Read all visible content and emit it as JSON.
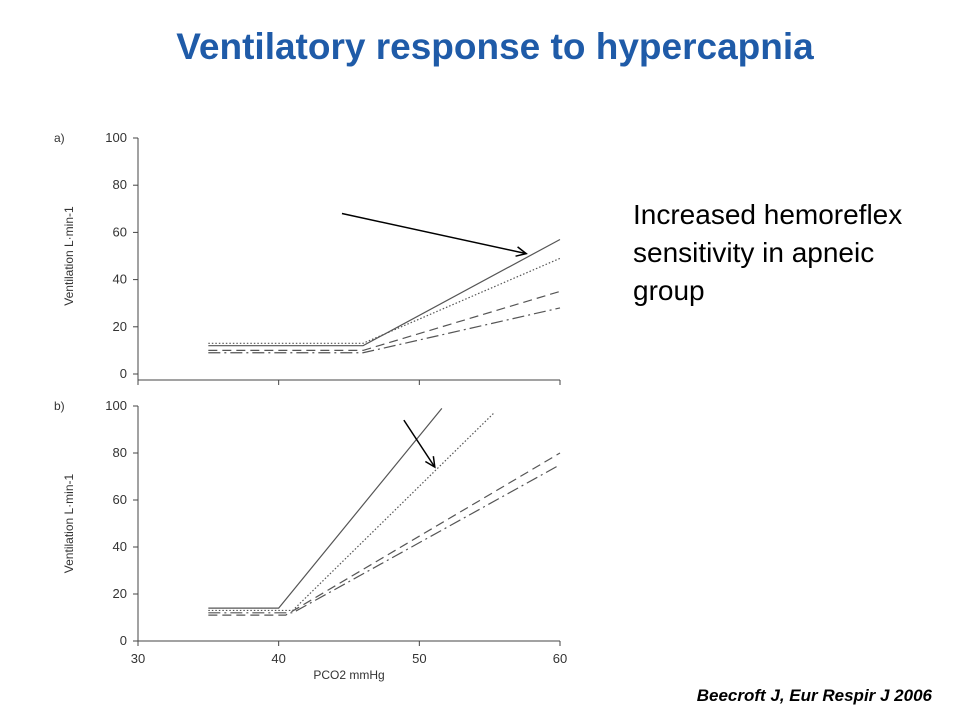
{
  "slide": {
    "title": "Ventilatory response to hypercapnia",
    "note_lines": [
      "Increased hemoreflex",
      "sensitivity  in apneic",
      "group"
    ],
    "citation": "Beecroft J, Eur Respir J 2006"
  },
  "chart_data": [
    {
      "type": "line",
      "panel_label": "a)",
      "ylabel": "Ventilation L·min-1",
      "xlabel": "",
      "xlim": [
        30,
        60
      ],
      "ylim": [
        0,
        100
      ],
      "yticks": [
        0,
        20,
        40,
        60,
        80,
        100
      ],
      "xticks": [],
      "series": [
        {
          "style": "solid",
          "x": [
            35,
            46,
            60
          ],
          "y": [
            12,
            12,
            57
          ]
        },
        {
          "style": "dotted",
          "x": [
            35,
            46,
            60
          ],
          "y": [
            13,
            13,
            49
          ]
        },
        {
          "style": "dashed",
          "x": [
            35,
            46,
            60
          ],
          "y": [
            10,
            10,
            35
          ]
        },
        {
          "style": "dashdot",
          "x": [
            35,
            46,
            60
          ],
          "y": [
            9,
            9,
            28
          ]
        }
      ],
      "arrow": {
        "from": [
          44.5,
          68
        ],
        "to": [
          57.6,
          51
        ]
      }
    },
    {
      "type": "line",
      "panel_label": "b)",
      "ylabel": "Ventilation L·min-1",
      "xlabel": "PCO2 mmHg",
      "xlim": [
        30,
        60
      ],
      "ylim": [
        0,
        100
      ],
      "yticks": [
        0,
        20,
        40,
        60,
        80,
        100
      ],
      "xticks": [
        30,
        40,
        50,
        60
      ],
      "series": [
        {
          "style": "solid",
          "x": [
            35,
            40,
            51.6
          ],
          "y": [
            14,
            14,
            99
          ]
        },
        {
          "style": "dotted",
          "x": [
            35,
            41,
            55.3
          ],
          "y": [
            13,
            13,
            97
          ]
        },
        {
          "style": "dashed",
          "x": [
            35,
            40.5,
            60
          ],
          "y": [
            11,
            11,
            80
          ]
        },
        {
          "style": "dashdot",
          "x": [
            35,
            41,
            60
          ],
          "y": [
            12,
            12,
            75
          ]
        }
      ],
      "arrow": {
        "from": [
          48.9,
          94
        ],
        "to": [
          51.1,
          74
        ]
      }
    }
  ]
}
